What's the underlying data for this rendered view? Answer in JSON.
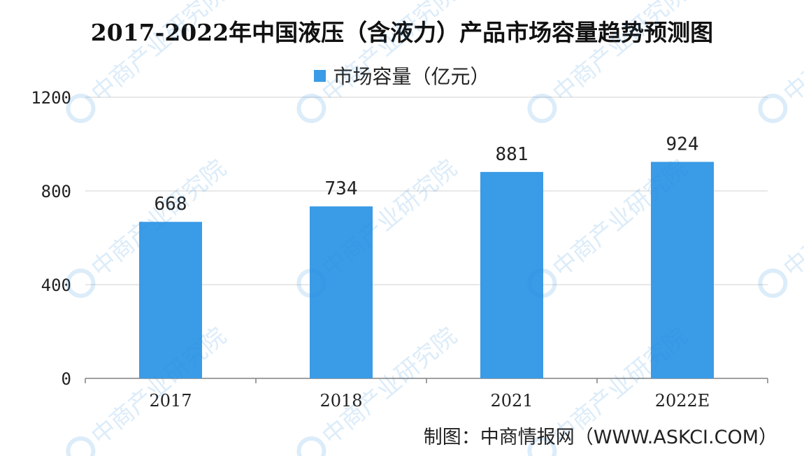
{
  "title": "2017-2022年中国液压（含液力）产品市场容量趋势预测图",
  "legend": {
    "label": "市场容量（亿元）"
  },
  "source": "制图：中商情报网（WWW.ASKCI.COM）",
  "watermark": {
    "text": "中商产业研究院"
  },
  "colors": {
    "bar": "#3a9be6",
    "grid": "#d0d0d0",
    "axis": "#808080",
    "watermark": "#2a8fe0"
  },
  "chart_data": {
    "type": "bar",
    "categories": [
      "2017",
      "2018",
      "2021",
      "2022E"
    ],
    "series": [
      {
        "name": "市场容量（亿元）",
        "values": [
          668,
          734,
          881,
          924
        ]
      }
    ],
    "data_labels": [
      "668",
      "734",
      "881",
      "924"
    ],
    "y_ticks": [
      "0",
      "400",
      "800",
      "1200"
    ],
    "ylim": [
      0,
      1200
    ],
    "grid": true,
    "legend_position": "top-center",
    "xlabel": "",
    "ylabel": ""
  }
}
